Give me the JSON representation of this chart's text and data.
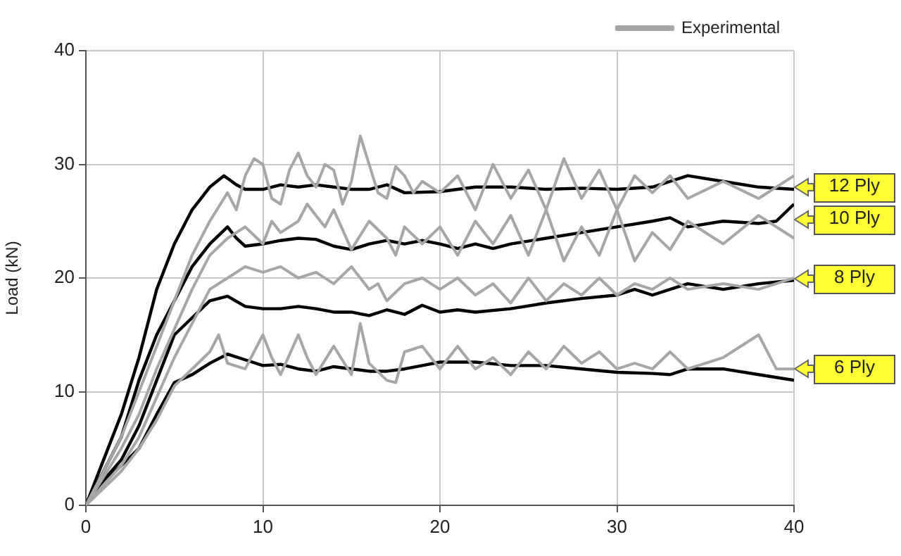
{
  "chart_data": {
    "type": "line",
    "ylabel": "Load (kN)",
    "xlim": [
      0,
      40
    ],
    "xticks": [
      0,
      10,
      20,
      30,
      40
    ],
    "ylim": [
      0,
      40
    ],
    "yticks": [
      0,
      10,
      20,
      30,
      40
    ],
    "grid": true,
    "legend": "top right",
    "marker": "none",
    "line_style": "solid",
    "series": [
      {
        "name": "Experimental",
        "color": "#a6a6a6",
        "x": [
          0,
          1,
          2,
          3,
          4,
          5,
          6,
          7,
          8,
          8.5,
          9,
          9.5,
          10,
          10.5,
          11,
          11.5,
          12,
          12.5,
          13,
          13.5,
          14,
          14.5,
          15,
          15.5,
          16,
          16.5,
          17,
          17.5,
          18,
          18.5,
          19,
          20,
          21,
          22,
          23,
          24,
          25,
          26,
          27,
          28,
          29,
          30,
          31,
          32,
          33,
          34,
          36,
          38,
          40
        ],
        "values": [
          0,
          3,
          6,
          10,
          14,
          18,
          22,
          25,
          27.5,
          26,
          29,
          30.5,
          30,
          27,
          26.5,
          29.5,
          31,
          29,
          28,
          30,
          29.5,
          26.5,
          28.5,
          32.5,
          30,
          27.5,
          27,
          29.8,
          29,
          27.5,
          28.5,
          27.5,
          29,
          26,
          30,
          27,
          29.5,
          26,
          30.5,
          27,
          29.5,
          26,
          29,
          27.5,
          29,
          27,
          28.5,
          27,
          29
        ]
      },
      {
        "color": "#a6a6a6",
        "x": [
          0,
          1,
          2,
          3,
          4,
          5,
          6,
          7,
          8,
          9,
          10,
          10.5,
          11,
          12,
          12.5,
          13,
          13.5,
          14,
          15,
          16,
          17,
          17.5,
          18,
          19,
          20,
          21,
          22,
          23,
          24,
          25,
          26,
          27,
          28,
          29,
          30,
          31,
          32,
          33,
          34,
          36,
          38,
          40
        ],
        "values": [
          0,
          2.5,
          5,
          8,
          12,
          15.5,
          19,
          22,
          23.5,
          24.5,
          23,
          25,
          24,
          25,
          26.5,
          25.5,
          24.5,
          26,
          22.5,
          25,
          23.5,
          22,
          24.5,
          23,
          24.5,
          22,
          25,
          23,
          25.5,
          22,
          26,
          21.5,
          24.5,
          22,
          26,
          21.5,
          24,
          22.5,
          25,
          23,
          25.5,
          23.5
        ]
      },
      {
        "color": "#a6a6a6",
        "x": [
          0,
          1,
          2,
          3,
          4,
          5,
          6,
          7,
          8,
          9,
          10,
          11,
          12,
          13,
          14,
          15,
          16,
          16.5,
          17,
          18,
          19,
          20,
          21,
          22,
          23,
          24,
          25,
          26,
          27,
          28,
          29,
          30,
          31,
          32,
          33,
          34,
          36,
          38,
          40
        ],
        "values": [
          0,
          1.8,
          3.5,
          6,
          9.5,
          13,
          16,
          19,
          20,
          21,
          20.5,
          21,
          20,
          20.5,
          19.5,
          21,
          19,
          19.5,
          18,
          19.5,
          20,
          19,
          20,
          18.5,
          19.5,
          17.8,
          20,
          18,
          19.5,
          18.5,
          20,
          18.5,
          19.5,
          19,
          20,
          19,
          19.5,
          19,
          20
        ]
      },
      {
        "color": "#a6a6a6",
        "x": [
          0,
          1,
          2,
          3,
          4,
          5,
          6,
          7,
          7.5,
          8,
          9,
          10,
          10.5,
          11,
          12,
          12.5,
          13,
          14,
          15,
          15.5,
          16,
          17,
          17.5,
          18,
          19,
          20,
          21,
          22,
          23,
          24,
          25,
          26,
          27,
          28,
          29,
          30,
          31,
          32,
          33,
          34,
          36,
          38,
          39,
          40
        ],
        "values": [
          0,
          1.5,
          3,
          5,
          7.5,
          10.5,
          12,
          13.5,
          15,
          12.5,
          12,
          15,
          13,
          11.5,
          15,
          13,
          11.5,
          14,
          11.5,
          16,
          12.5,
          11,
          10.8,
          13.5,
          14,
          12,
          14,
          12,
          13,
          11.5,
          13.5,
          12,
          14,
          12.5,
          13.5,
          12,
          12.5,
          12,
          13.5,
          12,
          13,
          15,
          12,
          12
        ]
      },
      {
        "color": "#000000",
        "x": [
          0,
          1,
          2,
          3,
          4,
          5,
          6,
          7,
          7.8,
          8.5,
          9,
          10,
          11,
          12,
          13,
          14,
          15,
          16,
          17,
          18,
          20,
          22,
          24,
          26,
          28,
          30,
          32,
          33,
          34,
          36,
          38,
          40
        ],
        "values": [
          0,
          4,
          8,
          13,
          19,
          23,
          26,
          28,
          29,
          28.2,
          27.8,
          27.8,
          28.2,
          28,
          28.2,
          28,
          27.8,
          27.8,
          28.2,
          27.5,
          27.6,
          28,
          28,
          27.8,
          27.9,
          27.8,
          28,
          28.5,
          29,
          28.5,
          28,
          27.8
        ]
      },
      {
        "color": "#000000",
        "x": [
          0,
          1,
          2,
          3,
          4,
          5,
          6,
          7,
          8,
          8.5,
          9,
          10,
          11,
          12,
          13,
          14,
          15,
          16,
          17,
          18,
          19,
          20,
          21,
          22,
          23,
          24,
          26,
          28,
          30,
          32,
          33,
          34,
          36,
          38,
          39,
          40
        ],
        "values": [
          0,
          3,
          6,
          11,
          15,
          18,
          21,
          23,
          24.5,
          23.5,
          22.8,
          23,
          23.3,
          23.5,
          23.4,
          22.8,
          22.5,
          23,
          23.3,
          23,
          23.3,
          23,
          22.6,
          23,
          22.6,
          23,
          23.5,
          24,
          24.5,
          25,
          25.3,
          24.5,
          25,
          24.8,
          25,
          26.5
        ]
      },
      {
        "color": "#000000",
        "x": [
          0,
          1,
          2,
          3,
          4,
          5,
          6,
          7,
          8,
          9,
          10,
          11,
          12,
          13,
          14,
          15,
          16,
          17,
          18,
          19,
          20,
          21,
          22,
          24,
          26,
          28,
          30,
          31,
          32,
          33,
          34,
          36,
          38,
          40
        ],
        "values": [
          0,
          2.2,
          4,
          7,
          11,
          15,
          16.5,
          18,
          18.4,
          17.5,
          17.3,
          17.3,
          17.5,
          17.3,
          17,
          17,
          16.7,
          17.2,
          16.8,
          17.6,
          17,
          17.2,
          17,
          17.3,
          17.8,
          18.2,
          18.5,
          19,
          18.5,
          19,
          19.5,
          19,
          19.5,
          19.8
        ]
      },
      {
        "color": "#000000",
        "x": [
          0,
          1,
          2,
          3,
          4,
          5,
          6,
          7,
          8,
          9,
          10,
          11,
          12,
          13,
          14,
          15,
          16,
          17,
          18,
          19,
          20,
          22,
          24,
          26,
          28,
          30,
          32,
          33,
          34,
          36,
          38,
          40
        ],
        "values": [
          0,
          2,
          3.5,
          5,
          8,
          10.8,
          11.5,
          12.5,
          13.3,
          12.8,
          12.3,
          12.4,
          12,
          11.8,
          12.2,
          12,
          11.8,
          11.8,
          12,
          12.3,
          12.6,
          12.6,
          12.3,
          12.3,
          12,
          11.7,
          11.6,
          11.5,
          12,
          12,
          11.5,
          11
        ]
      }
    ],
    "annotations": [
      "12 Ply",
      "10 Ply",
      "8 Ply",
      "6 Ply"
    ]
  }
}
